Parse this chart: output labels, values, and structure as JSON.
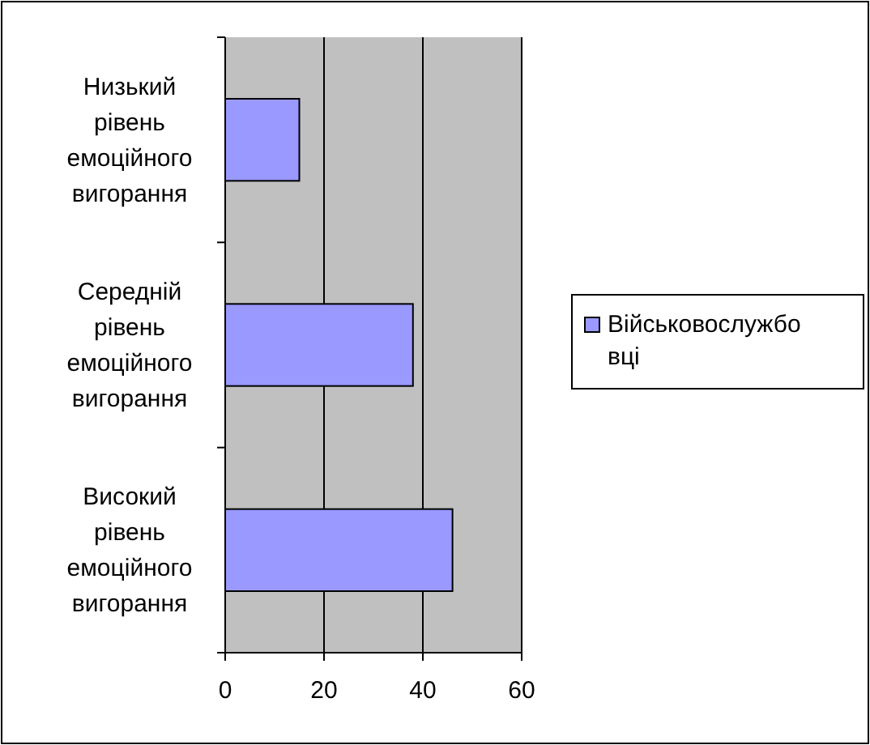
{
  "chart_data": {
    "type": "bar",
    "orientation": "horizontal",
    "categories": [
      "Низький рівень емоційного вигорання",
      "Середній рівень емоційного вигорання",
      "Високий рівень емоційного вигорання"
    ],
    "series": [
      {
        "name": "Військовослужбовці",
        "color": "#9999ff",
        "values": [
          15,
          38,
          46
        ]
      }
    ],
    "xlim": [
      0,
      60
    ],
    "xticks": [
      0,
      20,
      40,
      60
    ],
    "grid": "x",
    "legend": "right"
  }
}
